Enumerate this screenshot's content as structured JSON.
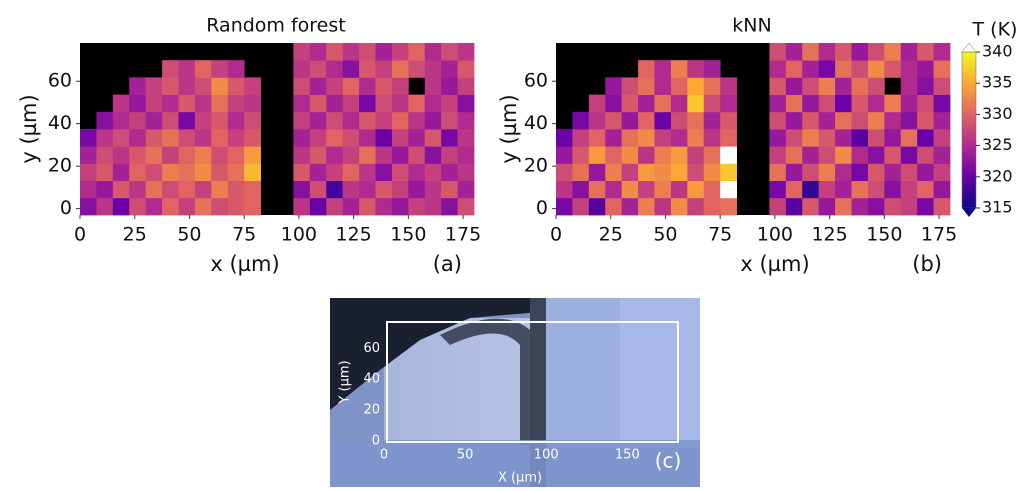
{
  "chart_data": [
    {
      "type": "heatmap",
      "title": "Random forest",
      "xlabel": "x (µm)",
      "ylabel": "y (µm)",
      "panel_label": "(a)",
      "xlim": [
        0,
        180
      ],
      "ylim": [
        -3,
        78
      ],
      "xticks": [
        0,
        25,
        50,
        75,
        100,
        125,
        150,
        175
      ],
      "yticks": [
        0,
        20,
        40,
        60
      ],
      "clim": [
        315,
        340
      ],
      "cmap": "plasma",
      "mask_color": "#000000",
      "over_color": "#ffffff",
      "z": [
        [
          322,
          326,
          320,
          328,
          325,
          330,
          327,
          331,
          328,
          329,
          330,
          null,
          null,
          326,
          320,
          327,
          324,
          329,
          325,
          323,
          327,
          326,
          322,
          328
        ],
        [
          325,
          323,
          329,
          326,
          331,
          328,
          330,
          327,
          332,
          329,
          330,
          null,
          null,
          322,
          328,
          318,
          326,
          325,
          329,
          327,
          323,
          326,
          329,
          324
        ],
        [
          327,
          329,
          324,
          330,
          328,
          332,
          331,
          333,
          329,
          331,
          336,
          null,
          null,
          329,
          324,
          327,
          330,
          326,
          322,
          328,
          325,
          327,
          324,
          326
        ],
        [
          324,
          328,
          326,
          329,
          331,
          327,
          330,
          332,
          328,
          330,
          334,
          null,
          null,
          326,
          329,
          325,
          327,
          331,
          326,
          323,
          328,
          322,
          327,
          325
        ],
        [
          321,
          326,
          328,
          325,
          329,
          331,
          328,
          326,
          330,
          327,
          329,
          null,
          null,
          324,
          327,
          330,
          328,
          325,
          320,
          327,
          324,
          329,
          321,
          326
        ],
        [
          null,
          322,
          325,
          327,
          324,
          328,
          321,
          327,
          329,
          325,
          328,
          null,
          null,
          327,
          324,
          328,
          325,
          329,
          327,
          330,
          326,
          323,
          328,
          325
        ],
        [
          null,
          null,
          326,
          323,
          327,
          325,
          329,
          326,
          331,
          327,
          326,
          null,
          null,
          325,
          329,
          324,
          327,
          321,
          328,
          326,
          330,
          325,
          327,
          322
        ],
        [
          null,
          null,
          null,
          324,
          327,
          329,
          326,
          328,
          333,
          329,
          327,
          null,
          null,
          328,
          324,
          327,
          330,
          325,
          329,
          327,
          null,
          326,
          323,
          327
        ],
        [
          null,
          null,
          null,
          null,
          null,
          328,
          326,
          330,
          327,
          325,
          null,
          null,
          null,
          326,
          328,
          325,
          322,
          329,
          327,
          331,
          328,
          326,
          324,
          329
        ],
        [
          null,
          null,
          null,
          null,
          null,
          null,
          null,
          null,
          null,
          null,
          null,
          null,
          null,
          327,
          325,
          329,
          326,
          328,
          324,
          327,
          330,
          325,
          328,
          326
        ]
      ]
    },
    {
      "type": "heatmap",
      "title": "kNN",
      "xlabel": "x (µm)",
      "ylabel": "y (µm)",
      "panel_label": "(b)",
      "xlim": [
        0,
        180
      ],
      "ylim": [
        -3,
        78
      ],
      "xticks": [
        0,
        25,
        50,
        75,
        100,
        125,
        150,
        175
      ],
      "yticks": [
        0,
        20,
        40,
        60
      ],
      "clim": [
        315,
        340
      ],
      "cmap": "plasma",
      "mask_color": "#000000",
      "over_color": "#ffffff",
      "colorbar": {
        "label": "T (K)",
        "ticks": [
          315,
          320,
          325,
          330,
          335,
          340
        ]
      },
      "z": [
        [
          321,
          327,
          319,
          330,
          324,
          332,
          326,
          333,
          327,
          330,
          331,
          null,
          null,
          327,
          319,
          329,
          323,
          331,
          324,
          322,
          328,
          327,
          321,
          329
        ],
        [
          326,
          322,
          331,
          325,
          333,
          327,
          332,
          326,
          334,
          330,
          342,
          null,
          null,
          321,
          330,
          317,
          327,
          324,
          331,
          328,
          322,
          327,
          330,
          323
        ],
        [
          328,
          331,
          323,
          332,
          327,
          334,
          333,
          335,
          328,
          333,
          337,
          null,
          null,
          331,
          323,
          328,
          332,
          325,
          321,
          329,
          324,
          328,
          323,
          327
        ],
        [
          323,
          329,
          334,
          330,
          333,
          326,
          332,
          334,
          327,
          331,
          342,
          null,
          null,
          327,
          331,
          324,
          328,
          333,
          325,
          322,
          329,
          321,
          328,
          324
        ],
        [
          320,
          327,
          330,
          324,
          331,
          333,
          327,
          325,
          332,
          326,
          330,
          null,
          null,
          323,
          328,
          332,
          329,
          324,
          319,
          328,
          323,
          331,
          320,
          327
        ],
        [
          null,
          321,
          326,
          329,
          323,
          330,
          320,
          328,
          331,
          324,
          329,
          null,
          null,
          328,
          323,
          329,
          324,
          331,
          328,
          332,
          325,
          322,
          329,
          324
        ],
        [
          null,
          null,
          327,
          322,
          329,
          324,
          331,
          325,
          337,
          328,
          325,
          null,
          null,
          324,
          331,
          323,
          328,
          320,
          329,
          325,
          332,
          324,
          328,
          321
        ],
        [
          null,
          null,
          null,
          323,
          328,
          331,
          325,
          330,
          335,
          331,
          326,
          null,
          null,
          329,
          323,
          328,
          332,
          324,
          331,
          328,
          null,
          325,
          322,
          328
        ],
        [
          null,
          null,
          null,
          null,
          null,
          330,
          325,
          332,
          326,
          324,
          null,
          null,
          null,
          325,
          330,
          324,
          321,
          331,
          328,
          333,
          329,
          325,
          323,
          331
        ],
        [
          null,
          null,
          null,
          null,
          null,
          null,
          null,
          null,
          null,
          null,
          null,
          null,
          null,
          328,
          324,
          331,
          325,
          329,
          323,
          328,
          332,
          324,
          329,
          325
        ]
      ]
    },
    {
      "type": "image",
      "xlabel": "X (µm)",
      "ylabel": "Y (µm)",
      "panel_label": "(c)",
      "xlim": [
        0,
        180
      ],
      "ylim": [
        0,
        77
      ],
      "xticks": [
        0,
        50,
        100,
        150
      ],
      "yticks": [
        0,
        20,
        40,
        60
      ]
    }
  ]
}
